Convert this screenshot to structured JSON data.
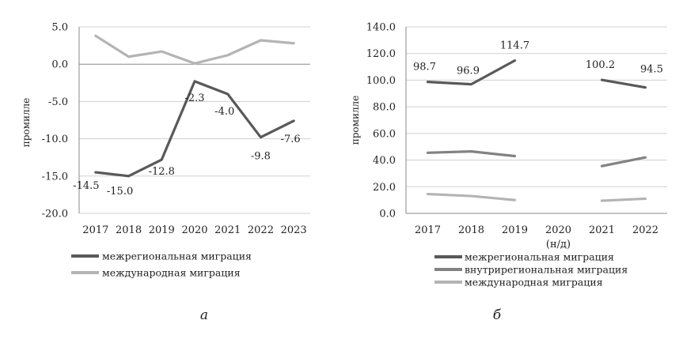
{
  "chart_data": [
    {
      "id": "a",
      "type": "line",
      "panel_label": "а",
      "ylabel": "промилле",
      "xlabel": "",
      "ylim": [
        -20,
        5
      ],
      "yticks": [
        "5.0",
        "0.0",
        "-5.0",
        "-10.0",
        "-15.0",
        "-20.0"
      ],
      "categories": [
        "2017",
        "2018",
        "2019",
        "2020",
        "2021",
        "2022",
        "2023"
      ],
      "series": [
        {
          "name": "межрегиональная миграция",
          "color": "#595959",
          "values": [
            -14.5,
            -15.0,
            -12.8,
            -2.3,
            -4.0,
            -9.8,
            -7.6
          ],
          "labels": [
            "-14.5",
            "-15.0",
            "-12.8",
            "-2.3",
            "-4.0",
            "-9.8",
            "-7.6"
          ]
        },
        {
          "name": "международная миграция",
          "color": "#b4b4b4",
          "values": [
            3.8,
            1.0,
            1.7,
            0.1,
            1.2,
            3.2,
            2.8
          ]
        }
      ],
      "legend_position": "bottom-left"
    },
    {
      "id": "b",
      "type": "line",
      "panel_label": "б",
      "ylabel": "промилле",
      "xlabel": "",
      "ylim": [
        0,
        140
      ],
      "yticks": [
        "140.0",
        "120.0",
        "100.0",
        "80.0",
        "60.0",
        "40.0",
        "20.0",
        "0.0"
      ],
      "categories": [
        "2017",
        "2018",
        "2019",
        "2020",
        "2021",
        "2022"
      ],
      "category_notes": [
        "",
        "",
        "",
        "(н/д)",
        "",
        ""
      ],
      "series": [
        {
          "name": "межрегиональная миграция",
          "color": "#595959",
          "values": [
            98.7,
            96.9,
            114.7,
            null,
            100.2,
            94.5
          ],
          "labels": [
            "98.7",
            "96.9",
            "114.7",
            null,
            "100.2",
            "94.5"
          ]
        },
        {
          "name": "внутрирегиональная миграция",
          "color": "#828282",
          "values": [
            45.5,
            46.5,
            43.0,
            null,
            35.5,
            42.0
          ]
        },
        {
          "name": "международная миграция",
          "color": "#b4b4b4",
          "values": [
            14.5,
            13.0,
            10.0,
            null,
            9.5,
            11.0
          ]
        }
      ],
      "legend_position": "bottom-left"
    }
  ]
}
